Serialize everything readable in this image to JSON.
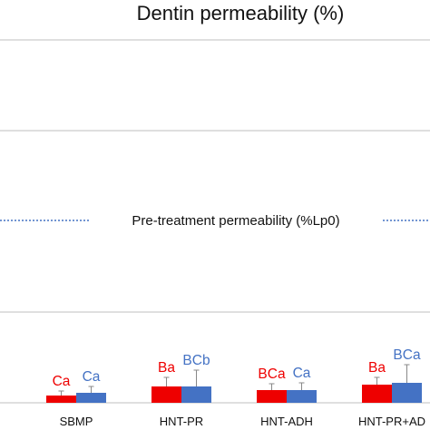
{
  "chart_data": {
    "type": "bar",
    "title": "Dentin permeability (%)",
    "xlabel": "",
    "ylabel": "",
    "categories": [
      "SBMP",
      "HNT-PR",
      "HNT-ADH",
      "HNT-PR+AD"
    ],
    "series": [
      {
        "color": "#ee0000",
        "values": [
          4,
          9,
          7,
          10
        ],
        "error": [
          2.5,
          5,
          3.5,
          4
        ]
      },
      {
        "color": "#4472c4",
        "values": [
          5.5,
          9,
          7,
          11
        ],
        "error": [
          3.5,
          9,
          4,
          10
        ]
      }
    ],
    "significance_labels": [
      [
        "Ca",
        "Ba",
        "BCa",
        "Ba"
      ],
      [
        "Ca",
        "BCb",
        "Ca",
        "BCa"
      ]
    ],
    "reference_line": {
      "label": "Pre-treatment permeability (%Lp0)",
      "value": 100,
      "style": "dotted",
      "color": "#4472c4"
    },
    "ylim": [
      0,
      200
    ],
    "grid": true,
    "legend": "none"
  }
}
